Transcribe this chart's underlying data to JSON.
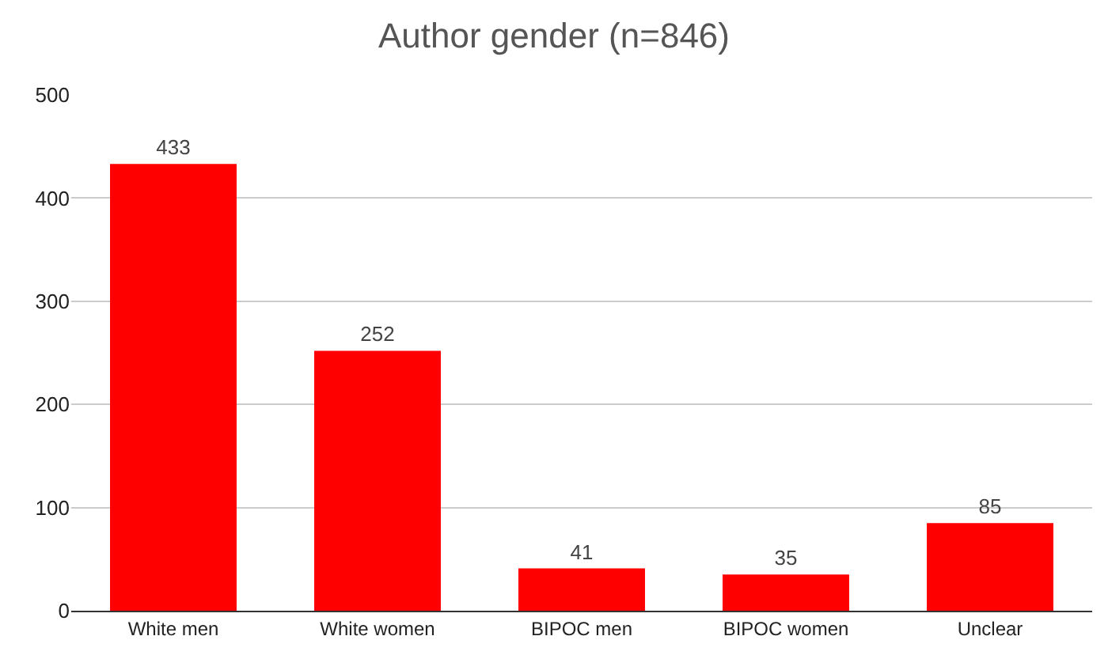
{
  "chart_data": {
    "type": "bar",
    "title": "Author gender (n=846)",
    "categories": [
      "White men",
      "White women",
      "BIPOC men",
      "BIPOC women",
      "Unclear"
    ],
    "values": [
      433,
      252,
      41,
      35,
      85
    ],
    "color": "#ff0000",
    "ylim": [
      0,
      500
    ],
    "yticks": [
      0,
      100,
      200,
      300,
      400,
      500
    ],
    "grid": "y",
    "data_labels": true
  }
}
